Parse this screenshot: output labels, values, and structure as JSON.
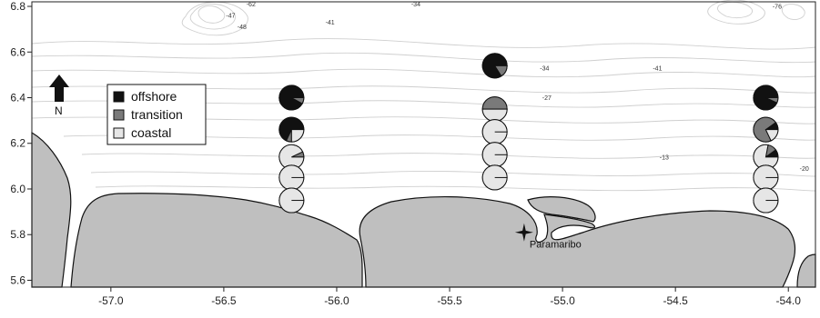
{
  "map": {
    "x_ticks": [
      "-57.0",
      "-56.5",
      "-56.0",
      "-55.5",
      "-55.0",
      "-54.5",
      "-54.0"
    ],
    "y_ticks": [
      "6.8",
      "6.6",
      "6.4",
      "6.2",
      "6.0",
      "5.8",
      "5.6"
    ],
    "x_range": [
      -57.35,
      -53.88
    ],
    "y_range": [
      5.57,
      6.82
    ],
    "north_label": "N",
    "city": {
      "name": "Paramaribo",
      "lon": -55.17,
      "lat": 5.81
    },
    "contour_labels": [
      {
        "text": "-62",
        "lon": -56.4,
        "lat": 6.8
      },
      {
        "text": "-47",
        "lon": -56.49,
        "lat": 6.75
      },
      {
        "text": "-48",
        "lon": -56.44,
        "lat": 6.7
      },
      {
        "text": "-41",
        "lon": -56.05,
        "lat": 6.72
      },
      {
        "text": "-34",
        "lon": -55.67,
        "lat": 6.8
      },
      {
        "text": "-34",
        "lon": -55.1,
        "lat": 6.52
      },
      {
        "text": "-41",
        "lon": -54.6,
        "lat": 6.52
      },
      {
        "text": "-27",
        "lon": -55.09,
        "lat": 6.39
      },
      {
        "text": "-13",
        "lon": -54.57,
        "lat": 6.13
      },
      {
        "text": "-20",
        "lon": -53.95,
        "lat": 6.08
      },
      {
        "text": "-76",
        "lon": -54.07,
        "lat": 6.79
      }
    ],
    "colors": {
      "land": "#bfbfbf",
      "offshore": "#111111",
      "transition": "#7a7a7a",
      "coastal": "#e6e6e6"
    }
  },
  "legend": {
    "items": [
      {
        "label": "offshore",
        "color": "#111111"
      },
      {
        "label": "transition",
        "color": "#7a7a7a"
      },
      {
        "label": "coastal",
        "color": "#e6e6e6"
      }
    ]
  },
  "stations": [
    {
      "lon": -56.2,
      "lat": 6.4,
      "offshore": 0.92,
      "transition": 0.08,
      "coastal": 0.0
    },
    {
      "lon": -56.2,
      "lat": 6.26,
      "offshore": 0.68,
      "transition": 0.07,
      "coastal": 0.25
    },
    {
      "lon": -56.2,
      "lat": 6.14,
      "offshore": 0.0,
      "transition": 0.07,
      "coastal": 0.93
    },
    {
      "lon": -56.2,
      "lat": 6.05,
      "offshore": 0.0,
      "transition": 0.0,
      "coastal": 1.0
    },
    {
      "lon": -56.2,
      "lat": 5.95,
      "offshore": 0.0,
      "transition": 0.0,
      "coastal": 1.0
    },
    {
      "lon": -55.3,
      "lat": 6.54,
      "offshore": 0.84,
      "transition": 0.16,
      "coastal": 0.0
    },
    {
      "lon": -55.3,
      "lat": 6.35,
      "offshore": 0.0,
      "transition": 0.5,
      "coastal": 0.5
    },
    {
      "lon": -55.3,
      "lat": 6.25,
      "offshore": 0.0,
      "transition": 0.0,
      "coastal": 1.0
    },
    {
      "lon": -55.3,
      "lat": 6.15,
      "offshore": 0.0,
      "transition": 0.0,
      "coastal": 1.0
    },
    {
      "lon": -55.3,
      "lat": 6.05,
      "offshore": 0.0,
      "transition": 0.0,
      "coastal": 1.0
    },
    {
      "lon": -54.1,
      "lat": 6.4,
      "offshore": 0.93,
      "transition": 0.07,
      "coastal": 0.0
    },
    {
      "lon": -54.1,
      "lat": 6.26,
      "offshore": 0.1,
      "transition": 0.72,
      "coastal": 0.18
    },
    {
      "lon": -54.1,
      "lat": 6.14,
      "offshore": 0.1,
      "transition": 0.12,
      "coastal": 0.78
    },
    {
      "lon": -54.1,
      "lat": 6.05,
      "offshore": 0.0,
      "transition": 0.0,
      "coastal": 1.0
    },
    {
      "lon": -54.1,
      "lat": 5.95,
      "offshore": 0.0,
      "transition": 0.0,
      "coastal": 1.0
    }
  ]
}
